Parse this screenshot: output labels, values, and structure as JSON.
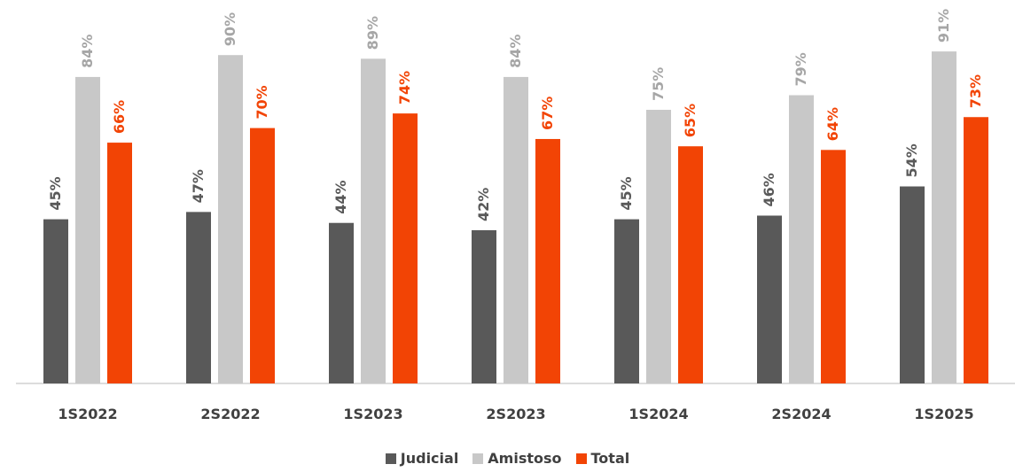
{
  "chart_data": {
    "type": "bar",
    "categories": [
      "1S2022",
      "2S2022",
      "1S2023",
      "2S2023",
      "1S2024",
      "2S2024",
      "1S2025"
    ],
    "series": [
      {
        "name": "Judicial",
        "color": "#595959",
        "label_color": "#595959",
        "values": [
          45,
          47,
          44,
          42,
          45,
          46,
          54
        ],
        "labels": [
          "45%",
          "47%",
          "44%",
          "42%",
          "45%",
          "46%",
          "54%"
        ]
      },
      {
        "name": "Amistoso",
        "color": "#c8c8c8",
        "label_color": "#a6a6a6",
        "values": [
          84,
          90,
          89,
          84,
          75,
          79,
          91
        ],
        "labels": [
          "84%",
          "90%",
          "89%",
          "84%",
          "75%",
          "79%",
          "91%"
        ]
      },
      {
        "name": "Total",
        "color": "#f24405",
        "label_color": "#f24405",
        "values": [
          66,
          70,
          74,
          67,
          65,
          64,
          73
        ],
        "labels": [
          "66%",
          "70%",
          "74%",
          "67%",
          "65%",
          "64%",
          "73%"
        ]
      }
    ],
    "ylim": [
      0,
      100
    ],
    "grid": false,
    "legend_position": "bottom"
  }
}
